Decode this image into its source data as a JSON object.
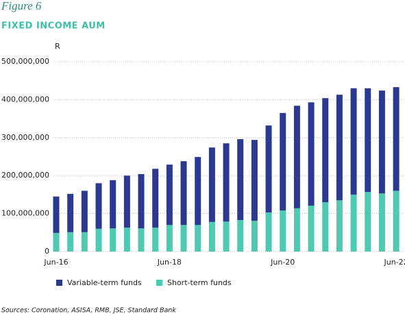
{
  "chart_data": {
    "type": "bar",
    "stacked": true,
    "title": "Figure 6",
    "subtitle": "FIXED INCOME AUM",
    "y_label": "R",
    "source": "Sources: Coronation, ASISA, RMB, JSE, Standard Bank",
    "categories": [
      "Jun-16",
      null,
      null,
      null,
      null,
      null,
      null,
      null,
      "Jun-18",
      null,
      null,
      null,
      null,
      null,
      null,
      null,
      "Jun-20",
      null,
      null,
      null,
      null,
      null,
      null,
      null,
      "Jun-22"
    ],
    "series": [
      {
        "name": "Variable-term funds",
        "color": "#2b3990",
        "values": [
          96000000,
          101000000,
          109000000,
          120000000,
          127000000,
          137000000,
          143000000,
          155000000,
          159000000,
          168000000,
          179000000,
          196000000,
          206000000,
          213000000,
          213000000,
          229000000,
          257000000,
          270000000,
          272000000,
          274000000,
          278000000,
          280000000,
          273000000,
          271000000,
          273000000
        ]
      },
      {
        "name": "Short-term funds",
        "color": "#4fcab2",
        "values": [
          49000000,
          51000000,
          51000000,
          60000000,
          61000000,
          63000000,
          61000000,
          63000000,
          70000000,
          70000000,
          70000000,
          78000000,
          79000000,
          83000000,
          81000000,
          103000000,
          108000000,
          114000000,
          121000000,
          130000000,
          135000000,
          150000000,
          157000000,
          153000000,
          160000000
        ]
      }
    ],
    "ylim": [
      0,
      500000000
    ],
    "yticks": [
      0,
      {
        "value": 100000000,
        "label": "100,000,000"
      },
      {
        "value": 200000000,
        "label": "200,000,000"
      },
      {
        "value": 300000000,
        "label": "300,000,000"
      },
      {
        "value": 400000000,
        "label": "400,000,000"
      },
      {
        "value": 500000000,
        "label": "500,000,000"
      }
    ],
    "grid": true
  }
}
